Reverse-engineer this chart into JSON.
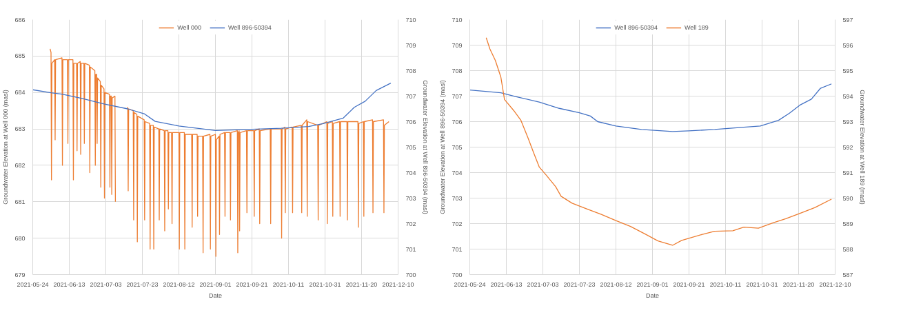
{
  "chart_data": [
    {
      "type": "line",
      "xlabel": "Date",
      "ylabel": "Groundwater Elevation at Well 000 (masl)",
      "y2label": "Groundwater Elevation at Well 896-50394 (masl)",
      "xlim": [
        "2021-05-24",
        "2021-12-10"
      ],
      "xticks": [
        "2021-05-24",
        "2021-06-13",
        "2021-07-03",
        "2021-07-23",
        "2021-08-12",
        "2021-09-01",
        "2021-09-21",
        "2021-10-11",
        "2021-10-31",
        "2021-11-20",
        "2021-12-10"
      ],
      "ylim": [
        679,
        686
      ],
      "yticks": [
        679,
        680,
        681,
        682,
        683,
        684,
        685,
        686
      ],
      "y2lim": [
        700,
        710
      ],
      "y2ticks": [
        700,
        701,
        702,
        703,
        704,
        705,
        706,
        707,
        708,
        709,
        710
      ],
      "grid": true,
      "legend": "top",
      "series": [
        {
          "name": "Well 000",
          "color": "#ed7d31",
          "x": [
            "2021-06-02T12:00",
            "2021-06-03T00:00",
            "2021-06-03T06:00",
            "2021-06-03T12:00",
            "2021-06-05T00:00",
            "2021-06-05T06:00",
            "2021-06-05T12:00",
            "2021-06-09T00:00",
            "2021-06-09T06:00",
            "2021-06-09T12:00",
            "2021-06-12T00:00",
            "2021-06-12T06:00",
            "2021-06-12T12:00",
            "2021-06-15T00:00",
            "2021-06-15T06:00",
            "2021-06-15T12:00",
            "2021-06-17T00:00",
            "2021-06-17T06:00",
            "2021-06-17T12:00",
            "2021-06-19T00:00",
            "2021-06-19T06:00",
            "2021-06-19T12:00",
            "2021-06-21T00:00",
            "2021-06-21T06:00",
            "2021-06-21T12:00",
            "2021-06-24T00:00",
            "2021-06-24T06:00",
            "2021-06-24T12:00",
            "2021-06-27T00:00",
            "2021-06-27T06:00",
            "2021-06-27T12:00",
            "2021-06-28T00:00",
            "2021-06-28T06:00",
            "2021-06-28T12:00",
            "2021-06-30T00:00",
            "2021-06-30T06:00",
            "2021-06-30T12:00",
            "2021-07-02T00:00",
            "2021-07-02T06:00",
            "2021-07-02T12:00",
            "2021-07-05T00:00",
            "2021-07-05T06:00",
            "2021-07-05T12:00",
            "2021-07-06T00:00",
            "2021-07-06T06:00",
            "2021-07-06T12:00",
            "2021-07-08T00:00",
            "2021-07-08T06:00",
            "2021-07-11T00:00",
            "2021-07-15T00:00",
            "2021-07-15T06:00",
            "2021-07-15T12:00",
            "2021-07-18T00:00",
            "2021-07-18T06:00",
            "2021-07-18T12:00",
            "2021-07-20T00:00",
            "2021-07-20T06:00",
            "2021-07-20T12:00",
            "2021-07-24T00:00",
            "2021-07-24T06:00",
            "2021-07-24T12:00",
            "2021-07-27T00:00",
            "2021-07-27T06:00",
            "2021-07-27T12:00",
            "2021-07-29T00:00",
            "2021-07-29T06:00",
            "2021-07-29T12:00",
            "2021-08-01T00:00",
            "2021-08-01T06:00",
            "2021-08-01T12:00",
            "2021-08-04T00:00",
            "2021-08-04T06:00",
            "2021-08-04T12:00",
            "2021-08-06T00:00",
            "2021-08-06T06:00",
            "2021-08-06T12:00",
            "2021-08-08T00:00",
            "2021-08-08T06:00",
            "2021-08-08T12:00",
            "2021-08-12T00:00",
            "2021-08-12T06:00",
            "2021-08-12T12:00",
            "2021-08-15T00:00",
            "2021-08-15T06:00",
            "2021-08-15T12:00",
            "2021-08-19T00:00",
            "2021-08-19T06:00",
            "2021-08-19T12:00",
            "2021-08-22T00:00",
            "2021-08-22T06:00",
            "2021-08-22T12:00",
            "2021-08-25T00:00",
            "2021-08-25T06:00",
            "2021-08-25T12:00",
            "2021-08-29T00:00",
            "2021-08-29T06:00",
            "2021-08-29T12:00",
            "2021-09-01T00:00",
            "2021-09-01T06:00",
            "2021-09-01T12:00",
            "2021-09-03T00:00",
            "2021-09-03T06:00",
            "2021-09-03T12:00",
            "2021-09-06T00:00",
            "2021-09-06T06:00",
            "2021-09-06T12:00",
            "2021-09-09T00:00",
            "2021-09-09T06:00",
            "2021-09-09T12:00",
            "2021-09-13T00:00",
            "2021-09-13T06:00",
            "2021-09-13T12:00",
            "2021-09-14T00:00",
            "2021-09-14T06:00",
            "2021-09-14T12:00",
            "2021-09-18T00:00",
            "2021-09-18T06:00",
            "2021-09-18T12:00",
            "2021-09-22T00:00",
            "2021-09-22T06:00",
            "2021-09-22T12:00",
            "2021-09-25T00:00",
            "2021-09-25T06:00",
            "2021-09-25T12:00",
            "2021-10-01T00:00",
            "2021-10-01T06:00",
            "2021-10-01T12:00",
            "2021-10-07T00:00",
            "2021-10-07T06:00",
            "2021-10-07T12:00",
            "2021-10-09T00:00",
            "2021-10-09T06:00",
            "2021-10-09T12:00",
            "2021-10-13T00:00",
            "2021-10-13T06:00",
            "2021-10-13T12:00",
            "2021-10-18T00:00",
            "2021-10-18T06:00",
            "2021-10-18T12:00",
            "2021-10-21T00:00",
            "2021-10-21T06:00",
            "2021-10-21T12:00",
            "2021-10-27T00:00",
            "2021-10-27T06:00",
            "2021-10-27T12:00",
            "2021-11-01T00:00",
            "2021-11-01T06:00",
            "2021-11-01T12:00",
            "2021-11-04T00:00",
            "2021-11-04T06:00",
            "2021-11-04T12:00",
            "2021-11-08T00:00",
            "2021-11-08T06:00",
            "2021-11-08T12:00",
            "2021-11-12T00:00",
            "2021-11-12T06:00",
            "2021-11-12T12:00",
            "2021-11-18T00:00",
            "2021-11-18T06:00",
            "2021-11-18T12:00",
            "2021-11-21T00:00",
            "2021-11-21T06:00",
            "2021-11-21T12:00",
            "2021-11-26T00:00",
            "2021-11-26T06:00",
            "2021-11-26T12:00",
            "2021-12-02T00:00",
            "2021-12-02T06:00",
            "2021-12-02T12:00",
            "2021-12-05T00:00"
          ],
          "values": [
            685.2,
            685.1,
            681.6,
            684.8,
            684.9,
            682.7,
            684.9,
            684.95,
            682.0,
            684.9,
            684.9,
            682.6,
            684.9,
            684.9,
            681.6,
            684.8,
            684.8,
            682.4,
            684.8,
            684.85,
            682.3,
            684.8,
            684.8,
            682.6,
            684.8,
            684.75,
            681.8,
            684.7,
            684.6,
            682.0,
            684.5,
            684.5,
            682.6,
            684.4,
            684.3,
            681.4,
            684.2,
            684.1,
            681.1,
            684.0,
            683.95,
            681.4,
            683.9,
            683.9,
            681.2,
            683.85,
            683.9,
            681.0,
            null,
            683.6,
            681.3,
            683.55,
            683.5,
            680.5,
            683.45,
            683.4,
            679.9,
            683.35,
            683.25,
            680.5,
            683.2,
            683.15,
            679.7,
            683.1,
            683.1,
            679.7,
            683.05,
            683.0,
            680.5,
            683.0,
            682.95,
            680.2,
            682.95,
            682.95,
            680.8,
            682.9,
            682.9,
            680.4,
            682.9,
            682.9,
            679.7,
            682.9,
            682.9,
            679.7,
            682.85,
            682.85,
            680.3,
            682.85,
            682.85,
            680.6,
            682.8,
            682.8,
            679.6,
            682.8,
            682.85,
            679.7,
            682.8,
            682.85,
            679.5,
            682.7,
            682.8,
            680.1,
            682.85,
            682.9,
            680.6,
            682.9,
            682.9,
            680.5,
            682.9,
            682.95,
            679.6,
            682.9,
            682.95,
            680.2,
            682.9,
            682.95,
            680.7,
            682.95,
            682.95,
            680.6,
            682.95,
            683.0,
            680.4,
            682.95,
            683.0,
            680.4,
            683.0,
            683.0,
            680.0,
            683.0,
            683.05,
            680.7,
            683.0,
            683.05,
            680.7,
            683.05,
            683.1,
            680.7,
            683.1,
            683.25,
            680.6,
            683.2,
            683.1,
            680.5,
            683.1,
            683.2,
            680.4,
            683.15,
            683.2,
            680.6,
            683.15,
            683.2,
            680.6,
            683.2,
            683.2,
            680.5,
            683.2,
            683.2,
            680.3,
            683.15,
            683.2,
            680.6,
            683.2,
            683.25,
            680.7,
            683.2,
            683.25,
            680.7,
            683.1,
            683.2
          ]
        },
        {
          "name": "Well 896-50394",
          "color": "#4472c4",
          "axis": "y2",
          "x": [
            "2021-05-24",
            "2021-06-03",
            "2021-06-09",
            "2021-06-20",
            "2021-07-02",
            "2021-07-15",
            "2021-07-24",
            "2021-07-30",
            "2021-08-12",
            "2021-09-01",
            "2021-09-21",
            "2021-10-07",
            "2021-10-22",
            "2021-10-30",
            "2021-11-10",
            "2021-11-16",
            "2021-11-22",
            "2021-11-28",
            "2021-12-06"
          ],
          "values": [
            707.25,
            707.13,
            707.08,
            706.91,
            706.69,
            706.5,
            706.31,
            706.01,
            705.83,
            705.65,
            705.7,
            705.74,
            705.81,
            705.92,
            706.14,
            706.56,
            706.8,
            707.22,
            707.51
          ]
        }
      ]
    },
    {
      "type": "line",
      "xlabel": "Date",
      "ylabel": "Groundwater Elevation at Well 896-50394 (masl)",
      "y2label": "Groundwater Elevation at Well 189 (masl)",
      "xlim": [
        "2021-05-24",
        "2021-12-10"
      ],
      "xticks": [
        "2021-05-24",
        "2021-06-13",
        "2021-07-03",
        "2021-07-23",
        "2021-08-12",
        "2021-09-01",
        "2021-09-21",
        "2021-10-11",
        "2021-10-31",
        "2021-11-20",
        "2021-12-10"
      ],
      "ylim": [
        700,
        710
      ],
      "yticks": [
        700,
        701,
        702,
        703,
        704,
        705,
        706,
        707,
        708,
        709,
        710
      ],
      "y2lim": [
        587,
        597
      ],
      "y2ticks": [
        587,
        588,
        589,
        590,
        591,
        592,
        593,
        594,
        595,
        596,
        597
      ],
      "grid": true,
      "legend": "top",
      "series": [
        {
          "name": "Well 896-50394",
          "color": "#4472c4",
          "x": [
            "2021-05-24",
            "2021-06-10",
            "2021-06-18",
            "2021-07-01",
            "2021-07-12",
            "2021-07-23",
            "2021-07-29",
            "2021-08-02",
            "2021-08-12",
            "2021-08-26",
            "2021-09-12",
            "2021-09-21",
            "2021-10-05",
            "2021-10-21",
            "2021-10-30",
            "2021-11-09",
            "2021-11-15",
            "2021-11-21",
            "2021-11-27",
            "2021-12-02",
            "2021-12-08"
          ],
          "values": [
            707.24,
            707.13,
            706.98,
            706.77,
            706.52,
            706.35,
            706.22,
            706.0,
            705.83,
            705.69,
            705.61,
            705.64,
            705.69,
            705.78,
            705.83,
            706.05,
            706.33,
            706.66,
            706.88,
            707.31,
            707.48
          ]
        },
        {
          "name": "Well 189",
          "color": "#ed7d31",
          "axis": "y2",
          "x": [
            "2021-06-02",
            "2021-06-04",
            "2021-06-07",
            "2021-06-10",
            "2021-06-12",
            "2021-06-17",
            "2021-06-21",
            "2021-06-25",
            "2021-06-28",
            "2021-07-01",
            "2021-07-05",
            "2021-07-10",
            "2021-07-13",
            "2021-07-19",
            "2021-07-27",
            "2021-08-04",
            "2021-08-12",
            "2021-08-20",
            "2021-08-28",
            "2021-09-04",
            "2021-09-12",
            "2021-09-17",
            "2021-09-28",
            "2021-10-05",
            "2021-10-15",
            "2021-10-21",
            "2021-10-29",
            "2021-11-06",
            "2021-11-13",
            "2021-11-21",
            "2021-11-29",
            "2021-12-08"
          ],
          "values": [
            596.29,
            595.85,
            595.4,
            594.75,
            593.87,
            593.44,
            593.05,
            592.34,
            591.77,
            591.22,
            590.89,
            590.45,
            590.07,
            589.8,
            589.58,
            589.36,
            589.12,
            588.89,
            588.59,
            588.32,
            588.15,
            588.34,
            588.57,
            588.7,
            588.72,
            588.86,
            588.82,
            589.03,
            589.19,
            589.41,
            589.63,
            589.96
          ]
        }
      ]
    }
  ]
}
